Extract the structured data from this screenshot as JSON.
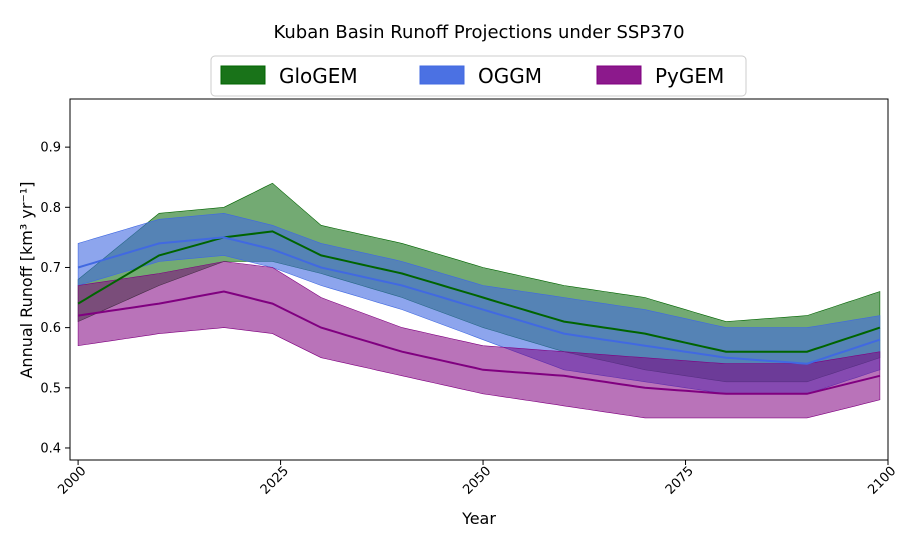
{
  "chart_data": {
    "type": "area",
    "title": "Kuban Basin Runoff Projections under SSP370",
    "xlabel": "Year",
    "ylabel": "Annual Runoff [km³ yr⁻¹]",
    "xlim": [
      1999,
      2100
    ],
    "ylim": [
      0.38,
      0.98
    ],
    "xticks": [
      2000,
      2025,
      2050,
      2075,
      2100
    ],
    "yticks": [
      0.4,
      0.5,
      0.6,
      0.7,
      0.8,
      0.9
    ],
    "legend": "top-center",
    "grid": false,
    "series": [
      {
        "name": "GloGEM",
        "color": "#006400",
        "fill_opacity": 0.55,
        "x": [
          2000,
          2010,
          2018,
          2024,
          2030,
          2040,
          2050,
          2060,
          2070,
          2080,
          2090,
          2099
        ],
        "mean": [
          0.64,
          0.72,
          0.75,
          0.76,
          0.72,
          0.69,
          0.65,
          0.61,
          0.59,
          0.56,
          0.56,
          0.6
        ],
        "lower": [
          0.61,
          0.67,
          0.71,
          0.71,
          0.69,
          0.65,
          0.6,
          0.56,
          0.53,
          0.51,
          0.51,
          0.55
        ],
        "upper": [
          0.68,
          0.79,
          0.8,
          0.84,
          0.77,
          0.74,
          0.7,
          0.67,
          0.65,
          0.61,
          0.62,
          0.66
        ]
      },
      {
        "name": "OGGM",
        "color": "#4169E1",
        "fill_opacity": 0.6,
        "x": [
          2000,
          2010,
          2018,
          2024,
          2030,
          2040,
          2050,
          2060,
          2070,
          2080,
          2090,
          2099
        ],
        "mean": [
          0.7,
          0.74,
          0.75,
          0.73,
          0.7,
          0.67,
          0.63,
          0.59,
          0.57,
          0.55,
          0.54,
          0.58
        ],
        "lower": [
          0.67,
          0.71,
          0.72,
          0.7,
          0.67,
          0.63,
          0.58,
          0.53,
          0.51,
          0.49,
          0.49,
          0.53
        ],
        "upper": [
          0.74,
          0.78,
          0.79,
          0.77,
          0.74,
          0.71,
          0.67,
          0.65,
          0.63,
          0.6,
          0.6,
          0.62
        ]
      },
      {
        "name": "PyGEM",
        "color": "#800080",
        "fill_opacity": 0.55,
        "x": [
          2000,
          2010,
          2018,
          2024,
          2030,
          2040,
          2050,
          2060,
          2070,
          2080,
          2090,
          2099
        ],
        "mean": [
          0.62,
          0.64,
          0.66,
          0.64,
          0.6,
          0.56,
          0.53,
          0.52,
          0.5,
          0.49,
          0.49,
          0.52
        ],
        "lower": [
          0.57,
          0.59,
          0.6,
          0.59,
          0.55,
          0.52,
          0.49,
          0.47,
          0.45,
          0.45,
          0.45,
          0.48
        ],
        "upper": [
          0.67,
          0.69,
          0.71,
          0.7,
          0.65,
          0.6,
          0.57,
          0.56,
          0.55,
          0.54,
          0.54,
          0.56
        ]
      }
    ]
  }
}
